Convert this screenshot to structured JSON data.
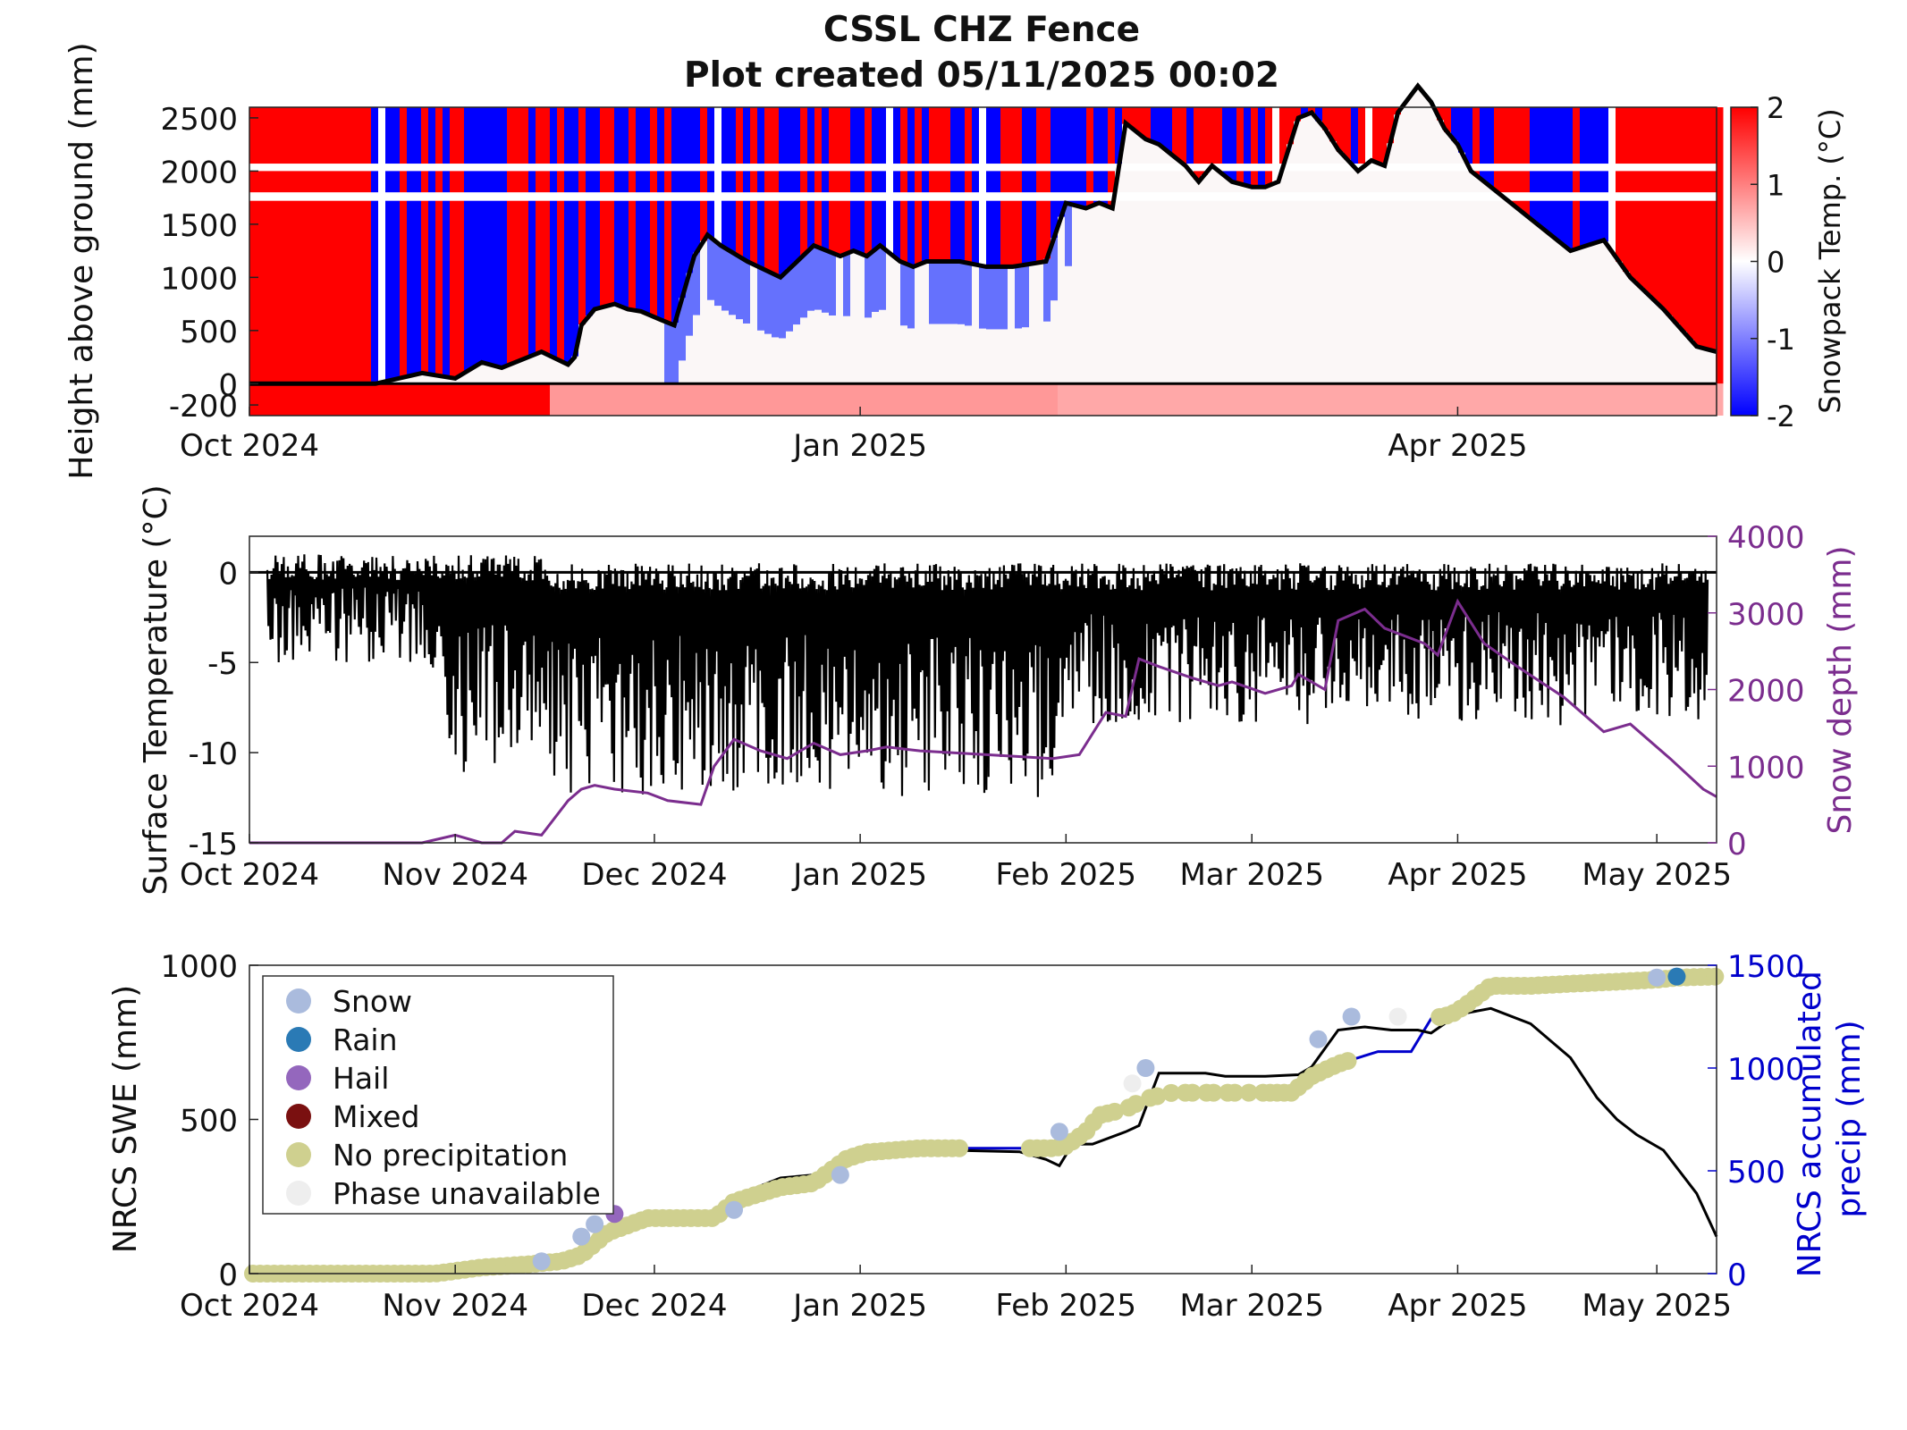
{
  "title": {
    "line1": "CSSL CHZ Fence",
    "line2": "Plot created 05/11/2025 00:02"
  },
  "colors": {
    "snowpack_warm": "#ff0000",
    "snowpack_cold": "#0000ff",
    "surface_temp": "#000000",
    "snow_depth": "#7b2d8e",
    "swe": "#000000",
    "precip": "#0000cc",
    "phase_snow": "#aabbdd",
    "phase_rain": "#2a7ab5",
    "phase_hail": "#9467bd",
    "phase_mixed": "#7a1010",
    "phase_none": "#cfd08f",
    "phase_unavailable": "#eeeeee"
  },
  "chart_data": [
    {
      "type": "heatmap",
      "title": "",
      "xlabel": "",
      "ylabel": "Height above ground (mm)",
      "x_tick_labels": [
        "Oct 2024",
        "Jan 2025",
        "Apr 2025"
      ],
      "y_tick_labels": [
        "2500",
        "2000",
        "1500",
        "1000",
        "500",
        "0",
        "-200"
      ],
      "y_ticks": [
        2500,
        2000,
        1500,
        1000,
        500,
        0,
        -200
      ],
      "ylim": [
        -300,
        2600
      ],
      "colorbar": {
        "label": "Snowpack Temp. (°C)",
        "tick_labels": [
          "2",
          "1",
          "0",
          "-1",
          "-2"
        ],
        "range": [
          -2,
          2
        ]
      },
      "snow_depth_line": {
        "name": "snow depth",
        "x": [
          "2024-10-01",
          "2024-10-20",
          "2024-10-27",
          "2024-11-01",
          "2024-11-05",
          "2024-11-08",
          "2024-11-14",
          "2024-11-18",
          "2024-11-19",
          "2024-11-20",
          "2024-11-22",
          "2024-11-25",
          "2024-11-27",
          "2024-11-29",
          "2024-12-02",
          "2024-12-04",
          "2024-12-07",
          "2024-12-09",
          "2024-12-11",
          "2024-12-15",
          "2024-12-20",
          "2024-12-25",
          "2024-12-29",
          "2024-12-31",
          "2025-01-02",
          "2025-01-04",
          "2025-01-07",
          "2025-01-09",
          "2025-01-11",
          "2025-01-13",
          "2025-01-16",
          "2025-01-20",
          "2025-01-24",
          "2025-01-29",
          "2025-02-01",
          "2025-02-04",
          "2025-02-06",
          "2025-02-08",
          "2025-02-10",
          "2025-02-13",
          "2025-02-15",
          "2025-02-17",
          "2025-02-19",
          "2025-02-21",
          "2025-02-23",
          "2025-02-26",
          "2025-03-01",
          "2025-03-03",
          "2025-03-05",
          "2025-03-08",
          "2025-03-10",
          "2025-03-12",
          "2025-03-14",
          "2025-03-17",
          "2025-03-19",
          "2025-03-21",
          "2025-03-23",
          "2025-03-26",
          "2025-03-28",
          "2025-03-30",
          "2025-04-01",
          "2025-04-03",
          "2025-04-07",
          "2025-04-12",
          "2025-04-18",
          "2025-04-23",
          "2025-04-27",
          "2025-05-02",
          "2025-05-07",
          "2025-05-10"
        ],
        "y": [
          0,
          0,
          100,
          50,
          200,
          150,
          300,
          180,
          250,
          550,
          700,
          750,
          700,
          680,
          600,
          550,
          1200,
          1400,
          1300,
          1150,
          1000,
          1300,
          1200,
          1250,
          1200,
          1300,
          1150,
          1100,
          1150,
          1150,
          1150,
          1100,
          1100,
          1150,
          1700,
          1650,
          1700,
          1650,
          2450,
          2300,
          2250,
          2150,
          2050,
          1900,
          2050,
          1900,
          1850,
          1850,
          1900,
          2500,
          2550,
          2400,
          2200,
          2000,
          2100,
          2050,
          2550,
          2800,
          2650,
          2400,
          2250,
          2000,
          1800,
          1550,
          1250,
          1350,
          1000,
          700,
          350,
          300
        ]
      }
    },
    {
      "type": "line",
      "title": "",
      "xlabel": "",
      "ylabel": "Surface Temperature (°C)",
      "y2label": "Snow depth (mm)",
      "x_tick_labels": [
        "Oct 2024",
        "Nov 2024",
        "Dec 2024",
        "Jan 2025",
        "Feb 2025",
        "Mar 2025",
        "Apr 2025",
        "May 2025"
      ],
      "y_ticks": [
        0,
        -5,
        -10,
        -15
      ],
      "y_tick_labels": [
        "0",
        "-5",
        "-10",
        "-15"
      ],
      "ylim": [
        -15,
        2
      ],
      "y2_ticks": [
        4000,
        3000,
        2000,
        1000,
        0
      ],
      "y2_tick_labels": [
        "4000",
        "3000",
        "2000",
        "1000",
        "0"
      ],
      "y2lim": [
        0,
        4000
      ],
      "series": [
        {
          "name": "Snow depth (mm)",
          "axis": "right",
          "x": [
            "2024-10-01",
            "2024-10-27",
            "2024-11-01",
            "2024-11-05",
            "2024-11-08",
            "2024-11-10",
            "2024-11-14",
            "2024-11-18",
            "2024-11-20",
            "2024-11-22",
            "2024-11-25",
            "2024-11-30",
            "2024-12-03",
            "2024-12-08",
            "2024-12-10",
            "2024-12-13",
            "2024-12-17",
            "2024-12-21",
            "2024-12-25",
            "2024-12-29",
            "2025-01-02",
            "2025-01-05",
            "2025-01-10",
            "2025-01-20",
            "2025-01-30",
            "2025-02-03",
            "2025-02-07",
            "2025-02-10",
            "2025-02-12",
            "2025-02-15",
            "2025-02-20",
            "2025-02-24",
            "2025-02-26",
            "2025-03-03",
            "2025-03-07",
            "2025-03-08",
            "2025-03-12",
            "2025-03-14",
            "2025-03-18",
            "2025-03-21",
            "2025-03-27",
            "2025-03-29",
            "2025-04-01",
            "2025-04-05",
            "2025-04-10",
            "2025-04-17",
            "2025-04-23",
            "2025-04-27",
            "2025-05-03",
            "2025-05-08",
            "2025-05-10"
          ],
          "y": [
            0,
            0,
            100,
            0,
            0,
            150,
            100,
            550,
            700,
            750,
            700,
            650,
            550,
            500,
            1000,
            1350,
            1200,
            1100,
            1300,
            1150,
            1200,
            1250,
            1200,
            1150,
            1100,
            1150,
            1700,
            1650,
            2400,
            2300,
            2150,
            2050,
            2100,
            1950,
            2050,
            2200,
            2000,
            2900,
            3050,
            2800,
            2600,
            2450,
            3150,
            2600,
            2300,
            1900,
            1450,
            1550,
            1100,
            700,
            600
          ]
        },
        {
          "name": "Surface Temperature (°C)",
          "axis": "left",
          "x_range": [
            "2024-10-01",
            "2025-05-10"
          ],
          "y_range": [
            -15,
            2
          ]
        }
      ]
    },
    {
      "type": "scatter",
      "title": "",
      "xlabel": "",
      "ylabel": "NRCS SWE (mm)",
      "y2label": "NRCS accumulated precip (mm)",
      "x_tick_labels": [
        "Oct 2024",
        "Nov 2024",
        "Dec 2024",
        "Jan 2025",
        "Feb 2025",
        "Mar 2025",
        "Apr 2025",
        "May 2025"
      ],
      "y_ticks": [
        0,
        500,
        1000
      ],
      "y_tick_labels": [
        "0",
        "500",
        "1000"
      ],
      "ylim": [
        0,
        1000
      ],
      "y2_ticks": [
        0,
        500,
        1000,
        1500
      ],
      "y2_tick_labels": [
        "0",
        "500",
        "1000",
        "1500"
      ],
      "y2lim": [
        0,
        1500
      ],
      "legend": {
        "placement": "upper-left",
        "entries": [
          {
            "label": "Snow",
            "color_key": "phase_snow"
          },
          {
            "label": "Rain",
            "color_key": "phase_rain"
          },
          {
            "label": "Hail",
            "color_key": "phase_hail"
          },
          {
            "label": "Mixed",
            "color_key": "phase_mixed"
          },
          {
            "label": "No precipitation",
            "color_key": "phase_none"
          },
          {
            "label": "Phase unavailable",
            "color_key": "phase_unavailable"
          }
        ]
      },
      "series": [
        {
          "name": "SWE",
          "axis": "left",
          "x": [
            "2024-10-01",
            "2024-10-29",
            "2024-11-02",
            "2024-11-06",
            "2024-11-09",
            "2024-11-14",
            "2024-11-17",
            "2024-11-20",
            "2024-11-23",
            "2024-11-28",
            "2024-12-10",
            "2024-12-13",
            "2024-12-20",
            "2024-12-25",
            "2024-12-30",
            "2025-01-05",
            "2025-01-15",
            "2025-01-25",
            "2025-01-29",
            "2025-01-31",
            "2025-02-02",
            "2025-02-05",
            "2025-02-10",
            "2025-02-12",
            "2025-02-15",
            "2025-02-22",
            "2025-02-25",
            "2025-03-03",
            "2025-03-08",
            "2025-03-10",
            "2025-03-14",
            "2025-03-18",
            "2025-03-22",
            "2025-03-26",
            "2025-03-28",
            "2025-04-01",
            "2025-04-06",
            "2025-04-12",
            "2025-04-18",
            "2025-04-22",
            "2025-04-25",
            "2025-04-28",
            "2025-05-02",
            "2025-05-07",
            "2025-05-10"
          ],
          "y": [
            0,
            0,
            10,
            10,
            15,
            25,
            25,
            35,
            130,
            170,
            180,
            250,
            310,
            320,
            360,
            405,
            400,
            395,
            370,
            350,
            420,
            420,
            460,
            480,
            650,
            650,
            640,
            640,
            645,
            670,
            790,
            800,
            790,
            790,
            780,
            840,
            860,
            810,
            700,
            570,
            500,
            450,
            400,
            260,
            120
          ]
        },
        {
          "name": "Accumulated precip",
          "axis": "right",
          "x": [
            "2024-10-01",
            "2024-10-29",
            "2024-11-05",
            "2024-11-12",
            "2024-11-17",
            "2024-11-20",
            "2024-11-24",
            "2024-11-30",
            "2024-12-10",
            "2024-12-13",
            "2024-12-20",
            "2024-12-25",
            "2024-12-30",
            "2025-01-02",
            "2025-01-10",
            "2025-01-25",
            "2025-01-30",
            "2025-02-01",
            "2025-02-04",
            "2025-02-06",
            "2025-02-10",
            "2025-02-13",
            "2025-02-17",
            "2025-02-28",
            "2025-03-07",
            "2025-03-10",
            "2025-03-14",
            "2025-03-18",
            "2025-03-20",
            "2025-03-25",
            "2025-03-28",
            "2025-03-31",
            "2025-04-02",
            "2025-04-06",
            "2025-04-12",
            "2025-04-18",
            "2025-04-25",
            "2025-05-01",
            "2025-05-04",
            "2025-05-10"
          ],
          "y": [
            0,
            0,
            30,
            45,
            60,
            90,
            200,
            270,
            270,
            350,
            420,
            440,
            560,
            590,
            610,
            610,
            610,
            620,
            690,
            770,
            800,
            850,
            880,
            880,
            880,
            960,
            1020,
            1060,
            1080,
            1080,
            1240,
            1260,
            1300,
            1400,
            1400,
            1410,
            1420,
            1430,
            1440,
            1445
          ]
        },
        {
          "name": "Phase",
          "points_note_free": true,
          "phase_events": [
            {
              "x": "2024-11-14",
              "y": 60,
              "phase": "phase_snow"
            },
            {
              "x": "2024-11-20",
              "y": 180,
              "phase": "phase_snow"
            },
            {
              "x": "2024-11-22",
              "y": 240,
              "phase": "phase_snow"
            },
            {
              "x": "2024-11-25",
              "y": 290,
              "phase": "phase_hail"
            },
            {
              "x": "2024-12-13",
              "y": 310,
              "phase": "phase_snow"
            },
            {
              "x": "2024-12-29",
              "y": 480,
              "phase": "phase_snow"
            },
            {
              "x": "2025-01-31",
              "y": 690,
              "phase": "phase_snow"
            },
            {
              "x": "2025-02-13",
              "y": 1000,
              "phase": "phase_snow"
            },
            {
              "x": "2025-02-11",
              "y": 925,
              "phase": "phase_unavailable"
            },
            {
              "x": "2025-03-11",
              "y": 1140,
              "phase": "phase_snow"
            },
            {
              "x": "2025-03-16",
              "y": 1250,
              "phase": "phase_snow"
            },
            {
              "x": "2025-03-23",
              "y": 1250,
              "phase": "phase_unavailable"
            },
            {
              "x": "2025-05-01",
              "y": 1440,
              "phase": "phase_snow"
            },
            {
              "x": "2025-05-04",
              "y": 1445,
              "phase": "phase_rain"
            }
          ]
        }
      ]
    }
  ]
}
